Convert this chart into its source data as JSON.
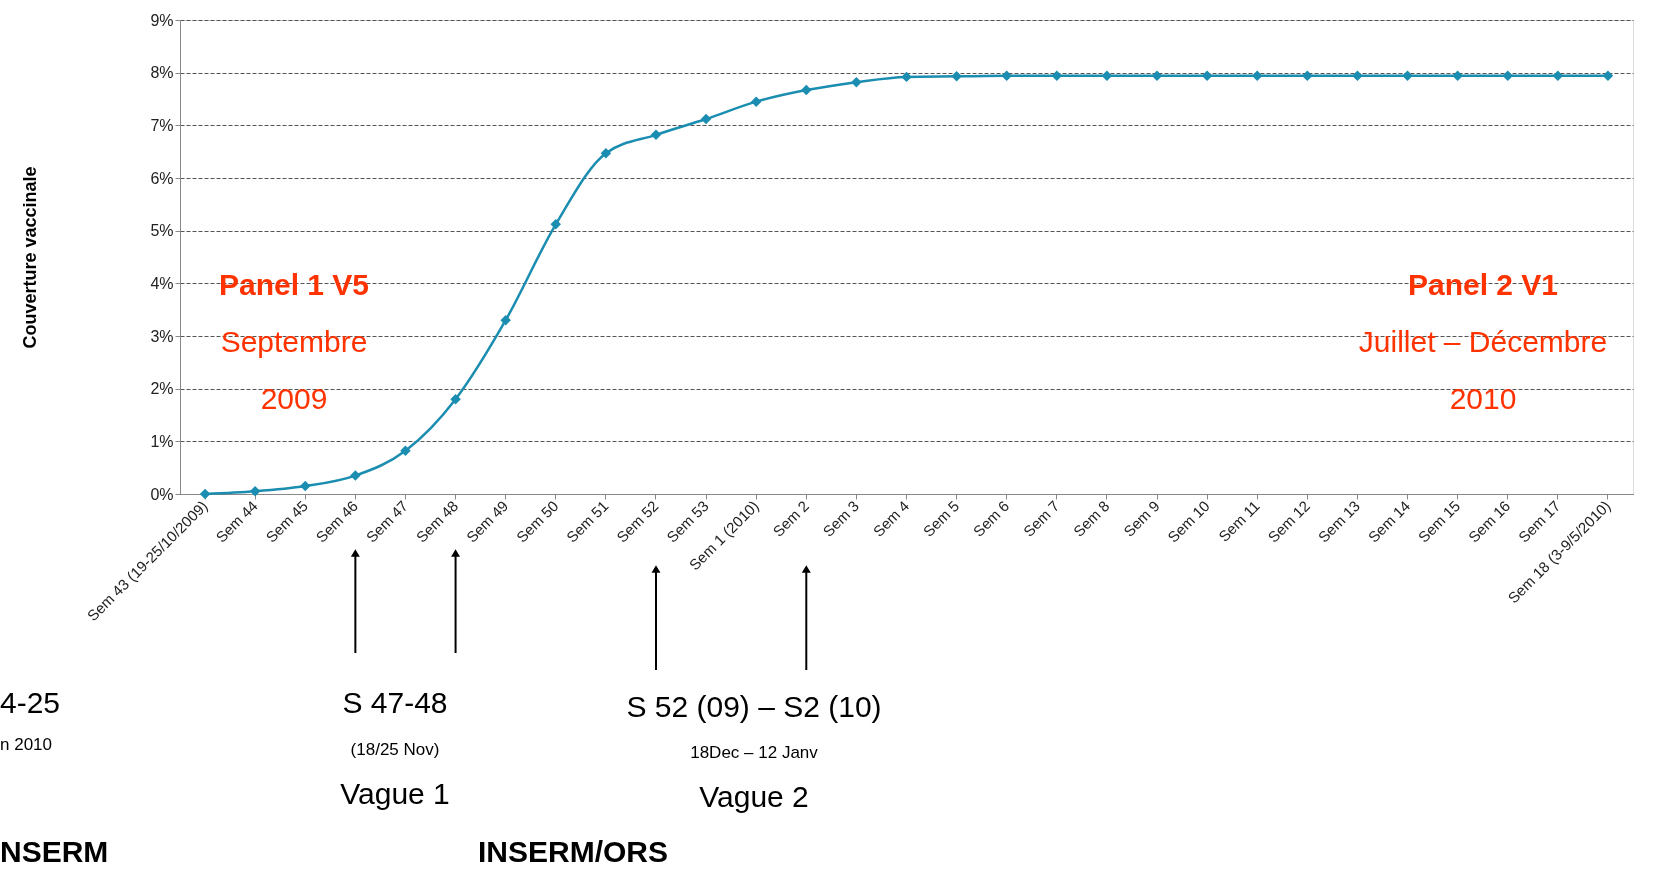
{
  "chart_data": {
    "type": "line",
    "ylabel": "Couverture vaccinale",
    "categories": [
      "Sem 43 (19-25/10/2009)",
      "Sem 44",
      "Sem 45",
      "Sem 46",
      "Sem 47",
      "Sem 48",
      "Sem 49",
      "Sem 50",
      "Sem 51",
      "Sem 52",
      "Sem 53",
      "Sem 1 (2010)",
      "Sem 2",
      "Sem 3",
      "Sem 4",
      "Sem 5",
      "Sem 6",
      "Sem 7",
      "Sem 8",
      "Sem 9",
      "Sem 10",
      "Sem 11",
      "Sem 12",
      "Sem 13",
      "Sem 14",
      "Sem 15",
      "Sem 16",
      "Sem 17",
      "Sem 18 (3-9/5/2010)"
    ],
    "series": [
      {
        "color": "#1b8db0",
        "values": [
          0.0,
          0.05,
          0.15,
          0.35,
          0.82,
          1.8,
          3.3,
          5.12,
          6.47,
          6.82,
          7.12,
          7.45,
          7.67,
          7.82,
          7.92,
          7.93,
          7.94,
          7.94,
          7.94,
          7.94,
          7.94,
          7.94,
          7.94,
          7.94,
          7.94,
          7.94,
          7.94,
          7.94,
          7.94
        ]
      }
    ],
    "ylim": [
      0,
      9
    ],
    "yticks": [
      {
        "value": 0,
        "label": "0%"
      },
      {
        "value": 1,
        "label": "1%"
      },
      {
        "value": 2,
        "label": "2%"
      },
      {
        "value": 3,
        "label": "3%"
      },
      {
        "value": 4,
        "label": "4%"
      },
      {
        "value": 5,
        "label": "5%"
      },
      {
        "value": 6,
        "label": "6%"
      },
      {
        "value": 7,
        "label": "7%"
      },
      {
        "value": 8,
        "label": "8%"
      },
      {
        "value": 9,
        "label": "9%"
      }
    ],
    "grid": "y",
    "marker": "diamond",
    "line_style": "solid",
    "annotations": [
      "Panel 1 V5",
      "Septembre",
      "2009",
      "Panel 2 V1",
      "Juillet – Décembre",
      "2010",
      "4-25",
      "n 2010",
      "NSERM",
      "S 47-48",
      "(18/25 Nov)",
      "Vague 1",
      "S 52 (09) – S2 (10)",
      "18Dec – 12 Janv",
      "Vague 2",
      "INSERM/ORS"
    ]
  }
}
